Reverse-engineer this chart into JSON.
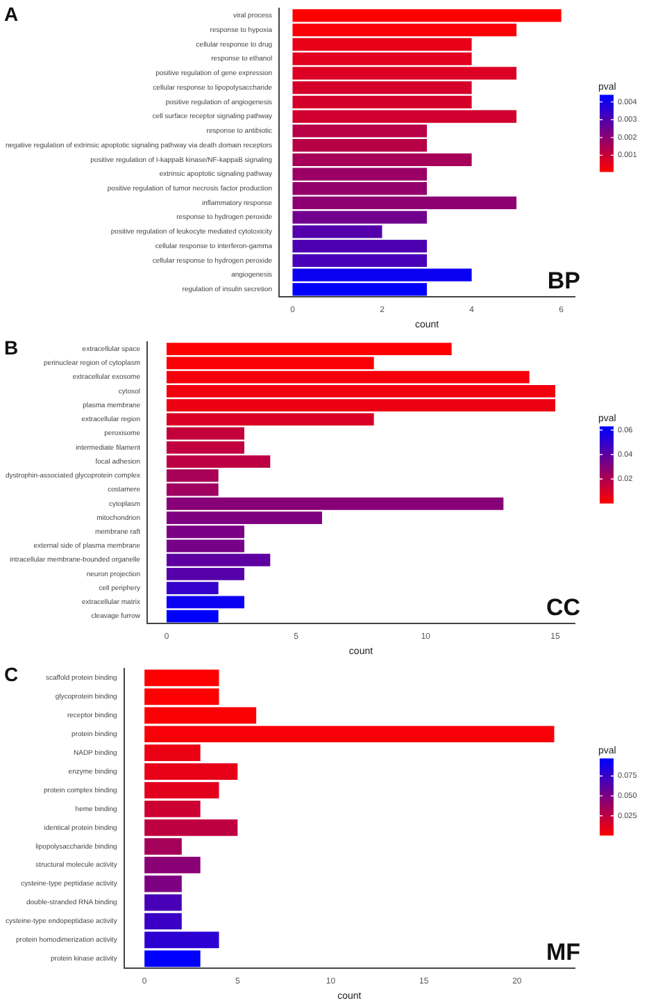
{
  "chart_data": [
    {
      "type": "bar",
      "orientation": "horizontal",
      "xlabel": "count",
      "clabel": "pval",
      "annotations": [
        "A",
        "BP"
      ],
      "categories": [
        "viral process",
        "response to hypoxia",
        "cellular response to drug",
        "response to ethanol",
        "positive regulation of gene expression",
        "cellular response to lipopolysaccharide",
        "positive regulation of angiogenesis",
        "cell surface receptor signaling pathway",
        "response to antibiotic",
        "negative regulation of extrinsic apoptotic signaling pathway via death domain receptors",
        "positive regulation of I-kappaB kinase/NF-kappaB signaling",
        "extrinsic apoptotic signaling pathway",
        "positive regulation of tumor necrosis factor production",
        "inflammatory response",
        "response to hydrogen peroxide",
        "positive regulation of leukocyte mediated cytotoxicity",
        "cellular response to interferon-gamma",
        "cellular response to hydrogen peroxide",
        "angiogenesis",
        "regulation of insulin secretion"
      ],
      "values": [
        6,
        5,
        4,
        4,
        5,
        4,
        4,
        5,
        3,
        3,
        4,
        3,
        3,
        5,
        3,
        2,
        3,
        3,
        4,
        3
      ],
      "cvalues": [
        0.0001,
        0.0002,
        0.0005,
        0.0006,
        0.0007,
        0.0008,
        0.0008,
        0.0009,
        0.0013,
        0.0013,
        0.0016,
        0.0018,
        0.0019,
        0.002,
        0.0025,
        0.003,
        0.0031,
        0.0032,
        0.0042,
        0.0044
      ],
      "clim": [
        0.0001,
        0.0044
      ],
      "cticks": [
        0.001,
        0.002,
        0.003,
        0.004
      ],
      "xlim": [
        -0.3,
        6.3
      ],
      "xticks": [
        0,
        2,
        4,
        6
      ]
    },
    {
      "type": "bar",
      "orientation": "horizontal",
      "xlabel": "count",
      "clabel": "pval",
      "annotations": [
        "B",
        "CC"
      ],
      "categories": [
        "extracellular space",
        "perinuclear region of cytoplasm",
        "extracellular exosome",
        "cytosol",
        "plasma membrane",
        "extracellular region",
        "peroxisome",
        "intermediate filament",
        "focal adhesion",
        "dystrophin-associated glycoprotein complex",
        "costamere",
        "cytoplasm",
        "mitochondrion",
        "membrane raft",
        "external side of plasma membrane",
        "intracellular membrane-bounded organelle",
        "neuron projection",
        "cell periphery",
        "extracellular matrix",
        "cleavage furrow"
      ],
      "values": [
        11,
        8,
        14,
        15,
        15,
        8,
        3,
        3,
        4,
        2,
        2,
        13,
        6,
        3,
        3,
        4,
        3,
        2,
        3,
        2
      ],
      "cvalues": [
        0.001,
        0.002,
        0.003,
        0.004,
        0.005,
        0.01,
        0.015,
        0.016,
        0.017,
        0.022,
        0.024,
        0.03,
        0.032,
        0.033,
        0.034,
        0.04,
        0.042,
        0.05,
        0.06,
        0.063
      ],
      "clim": [
        0.0006,
        0.063
      ],
      "cticks": [
        0.02,
        0.04,
        0.06
      ],
      "xlim": [
        -0.75,
        15.75
      ],
      "xticks": [
        0,
        5,
        10,
        15
      ]
    },
    {
      "type": "bar",
      "orientation": "horizontal",
      "xlabel": "count",
      "clabel": "pval",
      "annotations": [
        "C",
        "MF"
      ],
      "categories": [
        "scaffold protein binding",
        "glycoprotein binding",
        "receptor binding",
        "protein binding",
        "NADP binding",
        "enzyme binding",
        "protein complex binding",
        "heme binding",
        "identical protein binding",
        "lipopolysaccharide binding",
        "structural molecule activity",
        "cysteine-type peptidase activity",
        "double-stranded RNA binding",
        "cysteine-type endopeptidase activity",
        "protein homodimerization activity",
        "protein kinase activity"
      ],
      "values": [
        4,
        4,
        6,
        22,
        3,
        5,
        4,
        3,
        5,
        2,
        3,
        2,
        2,
        2,
        4,
        3
      ],
      "cvalues": [
        0.001,
        0.002,
        0.003,
        0.004,
        0.008,
        0.01,
        0.012,
        0.02,
        0.025,
        0.035,
        0.045,
        0.05,
        0.07,
        0.075,
        0.08,
        0.097
      ],
      "clim": [
        0.001,
        0.097
      ],
      "cticks": [
        0.025,
        {
          "value": 0.05,
          "label": "0.050"
        },
        0.075
      ],
      "xlim": [
        -1.1,
        23.1
      ],
      "xticks": [
        0,
        5,
        10,
        15,
        20
      ]
    }
  ]
}
